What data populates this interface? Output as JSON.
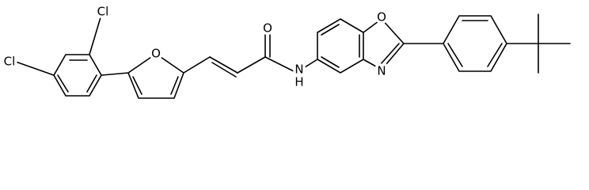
{
  "atoms": [
    {
      "label": "Cl"
    },
    {
      "label": "Cl"
    },
    {
      "label": "O"
    },
    {
      "label": "O"
    },
    {
      "label": "N"
    },
    {
      "label": "H"
    },
    {
      "label": "O"
    },
    {
      "label": "N"
    }
  ]
}
